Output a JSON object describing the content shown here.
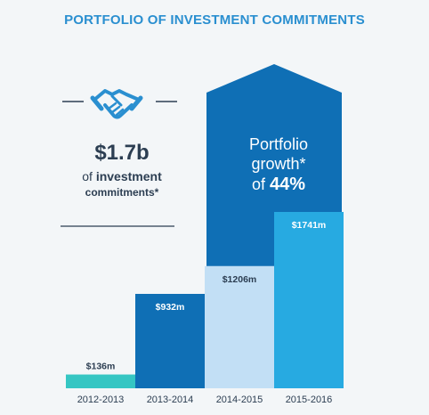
{
  "title": "PORTFOLIO OF INVESTMENT COMMITMENTS",
  "summary": {
    "amount": "$1.7b",
    "line1_prefix": "of",
    "line1_bold": "investment",
    "line2": "commitments*",
    "icon": "handshake-icon"
  },
  "growth": {
    "line1": "Portfolio",
    "line2": "growth*",
    "line3_prefix": "of",
    "line3_pct": "44%"
  },
  "colors": {
    "title": "#2a8fd0",
    "bar_2012": "#35c6c3",
    "bar_2013": "#0f6fb5",
    "bar_2014": "#c2dff5",
    "bar_2015": "#27aae1",
    "arrow": "#0f6fb5",
    "text_dark": "#2c3e52"
  },
  "chart_data": {
    "type": "bar",
    "categories": [
      "2012-2013",
      "2013-2014",
      "2014-2015",
      "2015-2016"
    ],
    "values": [
      136,
      932,
      1206,
      1741
    ],
    "data_labels": [
      "$136m",
      "$932m",
      "$1206m",
      "$1741m"
    ],
    "ylim": [
      0,
      1800
    ],
    "grid": false,
    "legend": "none"
  }
}
